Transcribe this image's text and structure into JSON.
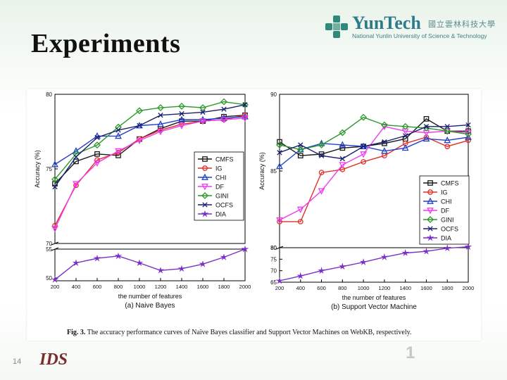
{
  "slide": {
    "title": "Experiments",
    "page_number": "14",
    "logo_brand": "YunTech",
    "logo_cjk": "國立雲林科技大學",
    "logo_subtitle": "National Yunlin University of Science & Technology",
    "footer_logo_text": "IDS",
    "footer_deco_number": "1",
    "caption_label": "Fig. 3.",
    "caption_text": "The accuracy performance curves of Naïve Bayes classifier and Support Vector Machines on WebKB, respectively."
  },
  "colors": {
    "CMFS": "#1a1a1a",
    "IG": "#e0302a",
    "CHI": "#2340c8",
    "DF": "#ee3cf0",
    "GINI": "#2a9a2a",
    "OCFS": "#1a1f6e",
    "DIA": "#7a2fc8"
  },
  "chart_data": [
    {
      "type": "line",
      "panel_caption": "(a) Naive Bayes",
      "xlabel": "the number of features",
      "ylabel": "Accuracy (%)",
      "x": [
        200,
        400,
        600,
        800,
        1000,
        1200,
        1400,
        1600,
        1800,
        2000
      ],
      "upper_ylim": [
        70,
        80
      ],
      "upper_yticks": [
        "70",
        "75",
        "80"
      ],
      "lower_ylim": [
        49.5,
        55
      ],
      "lower_yticks": [
        "50",
        "55"
      ],
      "legend_position": "right-middle",
      "series": [
        {
          "name": "CMFS",
          "marker": "square",
          "values": [
            74.0,
            75.5,
            76.0,
            75.9,
            77.0,
            77.7,
            78.2,
            78.2,
            78.5,
            78.6
          ]
        },
        {
          "name": "IG",
          "marker": "circle",
          "values": [
            71.2,
            73.9,
            75.6,
            76.1,
            77.0,
            77.6,
            78.0,
            78.2,
            78.3,
            78.6
          ]
        },
        {
          "name": "CHI",
          "marker": "triangle-up",
          "values": [
            75.3,
            76.2,
            77.2,
            77.2,
            77.9,
            78.0,
            78.3,
            78.3,
            78.4,
            78.5
          ]
        },
        {
          "name": "DF",
          "marker": "triangle-down",
          "values": [
            71.0,
            74.0,
            75.4,
            76.2,
            76.9,
            77.5,
            77.9,
            78.2,
            78.3,
            78.4
          ]
        },
        {
          "name": "GINI",
          "marker": "diamond",
          "values": [
            74.3,
            76.0,
            76.6,
            77.8,
            78.9,
            79.1,
            79.2,
            79.1,
            79.5,
            79.3
          ]
        },
        {
          "name": "OCFS",
          "marker": "x",
          "values": [
            73.8,
            75.8,
            77.1,
            77.6,
            77.9,
            78.6,
            78.7,
            78.8,
            79.0,
            79.3
          ]
        },
        {
          "name": "DIA",
          "marker": "star",
          "values": [
            49.7,
            52.6,
            53.4,
            53.8,
            52.6,
            51.3,
            51.6,
            52.4,
            53.6,
            55.0
          ]
        }
      ]
    },
    {
      "type": "line",
      "panel_caption": "(b) Support Vector Machine",
      "xlabel": "the number of features",
      "ylabel": "Accuracy (%)",
      "x": [
        200,
        400,
        600,
        800,
        1000,
        1200,
        1400,
        1600,
        1800,
        2000
      ],
      "upper_ylim": [
        80,
        90
      ],
      "upper_yticks": [
        "80",
        "85",
        "90"
      ],
      "lower_ylim": [
        65,
        80
      ],
      "lower_yticks": [
        "65",
        "70",
        "75",
        "80"
      ],
      "legend_position": "right-middle",
      "series": [
        {
          "name": "CMFS",
          "marker": "square",
          "values": [
            86.9,
            86.0,
            86.1,
            86.5,
            86.6,
            86.8,
            87.1,
            88.4,
            87.6,
            87.6
          ]
        },
        {
          "name": "IG",
          "marker": "circle",
          "values": [
            81.7,
            81.7,
            84.9,
            85.1,
            85.6,
            86.0,
            86.8,
            87.2,
            86.6,
            87.0
          ]
        },
        {
          "name": "CHI",
          "marker": "triangle-up",
          "values": [
            85.3,
            86.4,
            86.8,
            86.7,
            86.6,
            86.3,
            86.5,
            87.1,
            87.0,
            87.2
          ]
        },
        {
          "name": "DF",
          "marker": "triangle-down",
          "values": [
            81.8,
            82.5,
            83.7,
            85.4,
            86.1,
            87.9,
            87.6,
            87.5,
            87.6,
            87.5
          ]
        },
        {
          "name": "GINI",
          "marker": "diamond",
          "values": [
            86.7,
            86.4,
            86.7,
            87.5,
            88.5,
            88.0,
            87.9,
            87.8,
            87.6,
            87.4
          ]
        },
        {
          "name": "OCFS",
          "marker": "x",
          "values": [
            86.2,
            86.7,
            86.0,
            85.8,
            86.6,
            86.9,
            87.3,
            87.9,
            87.9,
            88.0
          ]
        },
        {
          "name": "DIA",
          "marker": "star",
          "values": [
            65.6,
            67.7,
            70.0,
            71.8,
            73.7,
            75.9,
            77.7,
            78.4,
            79.8,
            80.4
          ]
        }
      ]
    }
  ]
}
